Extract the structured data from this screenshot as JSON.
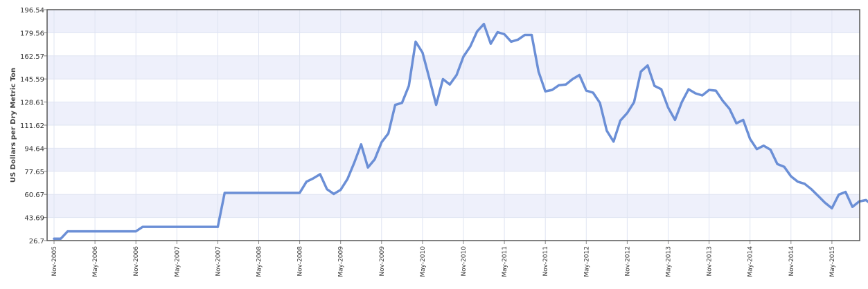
{
  "chart_data": {
    "type": "line",
    "title": "",
    "xlabel": "",
    "ylabel": "US Dollars per Dry Metric Ton",
    "ylim": [
      26.7,
      196.54
    ],
    "yticks": [
      "26.7",
      "43.69",
      "60.67",
      "77.65",
      "94.64",
      "111.62",
      "128.61",
      "145.59",
      "162.57",
      "179.56",
      "196.54"
    ],
    "xticks": [
      "Nov-2005",
      "May-2006",
      "Nov-2006",
      "May-2007",
      "Nov-2007",
      "May-2008",
      "Nov-2008",
      "May-2009",
      "Nov-2009",
      "May-2010",
      "Nov-2010",
      "May-2011",
      "Nov-2011",
      "May-2012",
      "Nov-2012",
      "May-2013",
      "Nov-2013",
      "May-2014",
      "Nov-2014",
      "May-2015"
    ],
    "grid": true,
    "colors": {
      "line": "#6b8fd6",
      "band": "#eef0fb",
      "grid": "#dfe4f2",
      "border": "#555555"
    },
    "series": [
      {
        "values": [
          28.1,
          28.1,
          33.5,
          33.5,
          33.5,
          33.5,
          33.5,
          33.5,
          33.5,
          33.5,
          33.5,
          33.5,
          33.5,
          36.8,
          36.8,
          36.8,
          36.8,
          36.8,
          36.8,
          36.8,
          36.8,
          36.8,
          36.8,
          36.8,
          36.8,
          61.8,
          61.8,
          61.8,
          61.8,
          61.8,
          61.8,
          61.8,
          61.8,
          61.8,
          61.8,
          61.8,
          61.8,
          70.0,
          72.5,
          75.5,
          64.5,
          61.0,
          64.0,
          72.0,
          84.0,
          97.5,
          80.5,
          86.5,
          99.0,
          105.5,
          126.5,
          128.0,
          140.5,
          173.0,
          165.0,
          146.0,
          126.5,
          145.5,
          141.5,
          148.5,
          162.0,
          169.5,
          180.5,
          186.0,
          171.5,
          180.0,
          178.5,
          173.0,
          174.5,
          178.0,
          178.0,
          151.0,
          136.5,
          137.5,
          141.0,
          141.5,
          145.5,
          148.5,
          137.0,
          135.5,
          128.0,
          107.5,
          99.5,
          115.0,
          120.5,
          128.5,
          151.0,
          155.5,
          140.5,
          138.0,
          124.5,
          115.5,
          128.5,
          138.0,
          135.0,
          133.5,
          137.5,
          137.0,
          129.5,
          123.5,
          113.0,
          115.5,
          101.5,
          94.0,
          96.5,
          93.5,
          83.0,
          81.0,
          74.0,
          70.0,
          68.5,
          64.5,
          59.5,
          54.5,
          50.5,
          60.5,
          62.5,
          51.5,
          55.5,
          56.5,
          52.5
        ]
      }
    ]
  }
}
